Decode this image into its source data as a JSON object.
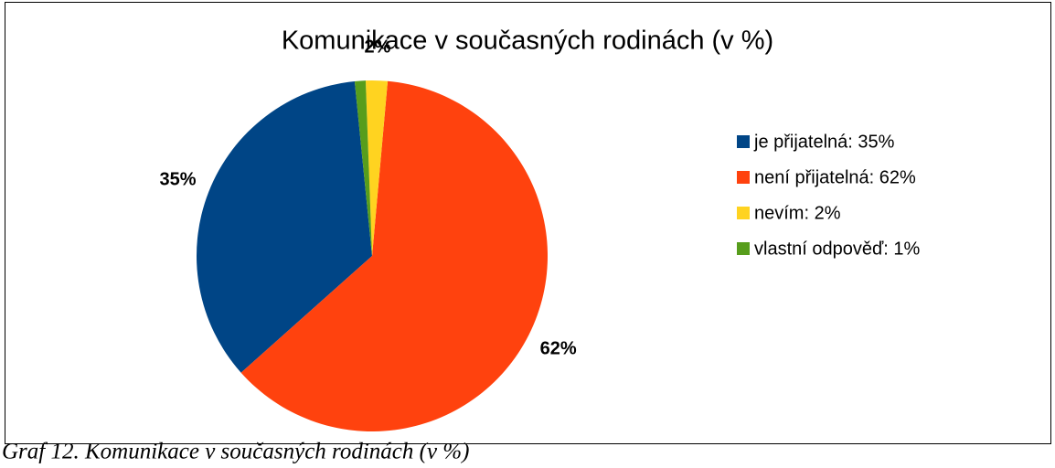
{
  "chart_data": {
    "type": "pie",
    "title": "Komunikace v současných rodinách (v %)",
    "categories": [
      "je přijatelná: 35%",
      "není přijatelná: 62%",
      "nevím: 2%",
      "vlastní odpověď: 1%"
    ],
    "values": [
      35,
      62,
      2,
      1
    ],
    "value_labels": [
      "35%",
      "62%",
      "2%",
      null
    ],
    "colors": [
      "#004586",
      "#ff420e",
      "#ffd320",
      "#579d1c"
    ],
    "legend": "right",
    "caption": "Graf 12. Komunikace v současných rodinách (v %)"
  }
}
